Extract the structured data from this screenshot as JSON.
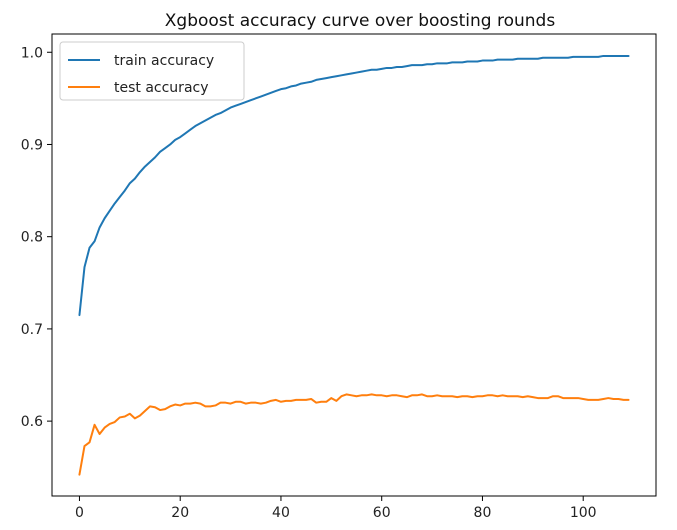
{
  "chart_data": {
    "type": "line",
    "title": "Xgboost accuracy curve over boosting rounds",
    "xlabel": "",
    "ylabel": "",
    "xlim": [
      -5.45,
      114.45
    ],
    "ylim": [
      0.5188,
      1.0198
    ],
    "x_ticks": [
      0,
      20,
      40,
      60,
      80,
      100
    ],
    "y_ticks": [
      0.6,
      0.7,
      0.8,
      0.9,
      1.0
    ],
    "x_tick_labels": [
      "0",
      "20",
      "40",
      "60",
      "80",
      "100"
    ],
    "y_tick_labels": [
      "0.6",
      "0.7",
      "0.8",
      "0.9",
      "1.0"
    ],
    "grid": false,
    "legend_position": "top-left",
    "series": [
      {
        "name": "train accuracy",
        "color": "#1f77b4",
        "x": [
          0,
          1,
          2,
          3,
          4,
          5,
          6,
          7,
          8,
          9,
          10,
          11,
          12,
          13,
          14,
          15,
          16,
          17,
          18,
          19,
          20,
          21,
          22,
          23,
          24,
          25,
          26,
          27,
          28,
          29,
          30,
          31,
          32,
          33,
          34,
          35,
          36,
          37,
          38,
          39,
          40,
          41,
          42,
          43,
          44,
          45,
          46,
          47,
          48,
          49,
          50,
          51,
          52,
          53,
          54,
          55,
          56,
          57,
          58,
          59,
          60,
          61,
          62,
          63,
          64,
          65,
          66,
          67,
          68,
          69,
          70,
          71,
          72,
          73,
          74,
          75,
          76,
          77,
          78,
          79,
          80,
          81,
          82,
          83,
          84,
          85,
          86,
          87,
          88,
          89,
          90,
          91,
          92,
          93,
          94,
          95,
          96,
          97,
          98,
          99,
          100,
          101,
          102,
          103,
          104,
          105,
          106,
          107,
          108,
          109
        ],
        "values": [
          0.715,
          0.767,
          0.788,
          0.795,
          0.81,
          0.82,
          0.828,
          0.836,
          0.843,
          0.85,
          0.858,
          0.863,
          0.87,
          0.876,
          0.881,
          0.886,
          0.892,
          0.896,
          0.9,
          0.905,
          0.908,
          0.912,
          0.916,
          0.92,
          0.923,
          0.926,
          0.929,
          0.932,
          0.934,
          0.937,
          0.94,
          0.942,
          0.944,
          0.946,
          0.948,
          0.95,
          0.952,
          0.954,
          0.956,
          0.958,
          0.96,
          0.961,
          0.963,
          0.964,
          0.966,
          0.967,
          0.968,
          0.97,
          0.971,
          0.972,
          0.973,
          0.974,
          0.975,
          0.976,
          0.977,
          0.978,
          0.979,
          0.98,
          0.981,
          0.981,
          0.982,
          0.983,
          0.983,
          0.984,
          0.984,
          0.985,
          0.986,
          0.986,
          0.986,
          0.987,
          0.987,
          0.988,
          0.988,
          0.988,
          0.989,
          0.989,
          0.989,
          0.99,
          0.99,
          0.99,
          0.991,
          0.991,
          0.991,
          0.992,
          0.992,
          0.992,
          0.992,
          0.993,
          0.993,
          0.993,
          0.993,
          0.993,
          0.994,
          0.994,
          0.994,
          0.994,
          0.994,
          0.994,
          0.995,
          0.995,
          0.995,
          0.995,
          0.995,
          0.995,
          0.996,
          0.996,
          0.996,
          0.996,
          0.996,
          0.996
        ]
      },
      {
        "name": "test accuracy",
        "color": "#ff7f0e",
        "x": [
          0,
          1,
          2,
          3,
          4,
          5,
          6,
          7,
          8,
          9,
          10,
          11,
          12,
          13,
          14,
          15,
          16,
          17,
          18,
          19,
          20,
          21,
          22,
          23,
          24,
          25,
          26,
          27,
          28,
          29,
          30,
          31,
          32,
          33,
          34,
          35,
          36,
          37,
          38,
          39,
          40,
          41,
          42,
          43,
          44,
          45,
          46,
          47,
          48,
          49,
          50,
          51,
          52,
          53,
          54,
          55,
          56,
          57,
          58,
          59,
          60,
          61,
          62,
          63,
          64,
          65,
          66,
          67,
          68,
          69,
          70,
          71,
          72,
          73,
          74,
          75,
          76,
          77,
          78,
          79,
          80,
          81,
          82,
          83,
          84,
          85,
          86,
          87,
          88,
          89,
          90,
          91,
          92,
          93,
          94,
          95,
          96,
          97,
          98,
          99,
          100,
          101,
          102,
          103,
          104,
          105,
          106,
          107,
          108,
          109
        ],
        "values": [
          0.542,
          0.573,
          0.577,
          0.596,
          0.586,
          0.593,
          0.597,
          0.599,
          0.604,
          0.605,
          0.608,
          0.603,
          0.606,
          0.611,
          0.616,
          0.615,
          0.612,
          0.613,
          0.616,
          0.618,
          0.617,
          0.619,
          0.619,
          0.62,
          0.619,
          0.616,
          0.616,
          0.617,
          0.62,
          0.62,
          0.619,
          0.621,
          0.621,
          0.619,
          0.62,
          0.62,
          0.619,
          0.62,
          0.622,
          0.623,
          0.621,
          0.622,
          0.622,
          0.623,
          0.623,
          0.623,
          0.624,
          0.62,
          0.621,
          0.621,
          0.625,
          0.622,
          0.627,
          0.629,
          0.628,
          0.627,
          0.628,
          0.628,
          0.629,
          0.628,
          0.628,
          0.627,
          0.628,
          0.628,
          0.627,
          0.626,
          0.628,
          0.628,
          0.629,
          0.627,
          0.627,
          0.628,
          0.627,
          0.627,
          0.627,
          0.626,
          0.627,
          0.627,
          0.626,
          0.627,
          0.627,
          0.628,
          0.628,
          0.627,
          0.628,
          0.627,
          0.627,
          0.627,
          0.626,
          0.627,
          0.626,
          0.625,
          0.625,
          0.625,
          0.627,
          0.627,
          0.625,
          0.625,
          0.625,
          0.625,
          0.624,
          0.623,
          0.623,
          0.623,
          0.624,
          0.625,
          0.624,
          0.624,
          0.623,
          0.623
        ]
      }
    ]
  }
}
